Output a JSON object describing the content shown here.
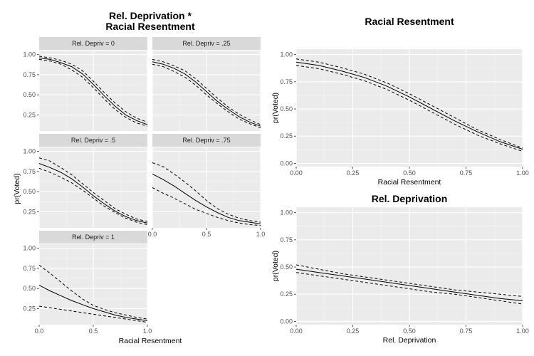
{
  "chart_data": [
    {
      "type": "line",
      "title": "Rel. Deprivation *\nRacial Resentment",
      "title_lines": [
        "Rel. Deprivation *",
        "Racial Resentment"
      ],
      "xlabel": "Racial Resentment",
      "ylabel": "pr(Voted)",
      "xlim": [
        0,
        1
      ],
      "ylim": [
        0.05,
        1.05
      ],
      "x_ticks": [
        0,
        0.5,
        1
      ],
      "x_tick_labels": [
        "0.0",
        "0.5",
        "1.0"
      ],
      "y_ticks": [
        0.25,
        0.5,
        0.75,
        1.0
      ],
      "y_tick_labels": [
        "0.25",
        "0.50",
        "0.75",
        "1.00"
      ],
      "x": [
        0,
        0.1,
        0.2,
        0.3,
        0.4,
        0.5,
        0.6,
        0.7,
        0.8,
        0.9,
        1.0
      ],
      "grid": true,
      "facets": [
        {
          "strip": "Rel. Depriv = 0",
          "estimate": [
            0.96,
            0.94,
            0.9,
            0.85,
            0.76,
            0.63,
            0.49,
            0.36,
            0.25,
            0.18,
            0.13
          ],
          "upper": [
            0.98,
            0.96,
            0.93,
            0.88,
            0.8,
            0.67,
            0.53,
            0.4,
            0.29,
            0.21,
            0.16
          ],
          "lower": [
            0.94,
            0.92,
            0.88,
            0.81,
            0.72,
            0.59,
            0.45,
            0.32,
            0.22,
            0.15,
            0.11
          ]
        },
        {
          "strip": "Rel. Depriv = .25",
          "estimate": [
            0.91,
            0.88,
            0.83,
            0.76,
            0.66,
            0.54,
            0.42,
            0.32,
            0.23,
            0.16,
            0.11
          ],
          "upper": [
            0.94,
            0.91,
            0.86,
            0.8,
            0.7,
            0.58,
            0.46,
            0.35,
            0.26,
            0.19,
            0.13
          ],
          "lower": [
            0.88,
            0.85,
            0.79,
            0.72,
            0.62,
            0.5,
            0.39,
            0.29,
            0.2,
            0.14,
            0.09
          ]
        },
        {
          "strip": "Rel. Depriv = .5",
          "estimate": [
            0.85,
            0.8,
            0.74,
            0.66,
            0.56,
            0.45,
            0.35,
            0.26,
            0.19,
            0.14,
            0.11
          ],
          "upper": [
            0.92,
            0.88,
            0.8,
            0.71,
            0.6,
            0.49,
            0.39,
            0.29,
            0.22,
            0.16,
            0.13
          ],
          "lower": [
            0.79,
            0.74,
            0.68,
            0.61,
            0.52,
            0.42,
            0.32,
            0.24,
            0.17,
            0.12,
            0.09
          ]
        },
        {
          "strip": "Rel. Depriv = .75",
          "estimate": [
            0.72,
            0.65,
            0.57,
            0.48,
            0.39,
            0.31,
            0.24,
            0.18,
            0.14,
            0.12,
            0.1
          ],
          "upper": [
            0.86,
            0.81,
            0.72,
            0.62,
            0.51,
            0.39,
            0.29,
            0.22,
            0.17,
            0.14,
            0.12
          ],
          "lower": [
            0.55,
            0.48,
            0.42,
            0.35,
            0.28,
            0.23,
            0.18,
            0.14,
            0.11,
            0.09,
            0.08
          ]
        },
        {
          "strip": "Rel. Depriv = 1",
          "estimate": [
            0.54,
            0.47,
            0.41,
            0.35,
            0.3,
            0.25,
            0.21,
            0.17,
            0.14,
            0.12,
            0.1
          ],
          "upper": [
            0.79,
            0.69,
            0.58,
            0.47,
            0.37,
            0.29,
            0.24,
            0.2,
            0.17,
            0.14,
            0.12
          ],
          "lower": [
            0.28,
            0.26,
            0.24,
            0.22,
            0.2,
            0.18,
            0.16,
            0.14,
            0.12,
            0.1,
            0.08
          ]
        }
      ]
    },
    {
      "type": "line",
      "title": "Racial Resentment",
      "xlabel": "Racial Resentment",
      "ylabel": "pr(Voted)",
      "xlim": [
        0,
        1
      ],
      "ylim": [
        -0.03,
        1.05
      ],
      "x_ticks": [
        0,
        0.25,
        0.5,
        0.75,
        1.0
      ],
      "x_tick_labels": [
        "0.00",
        "0.25",
        "0.50",
        "0.75",
        "1.00"
      ],
      "y_ticks": [
        0,
        0.25,
        0.5,
        0.75,
        1.0
      ],
      "y_tick_labels": [
        "0.00",
        "0.25",
        "0.50",
        "0.75",
        "1.00"
      ],
      "grid": true,
      "x": [
        0,
        0.1,
        0.2,
        0.3,
        0.4,
        0.5,
        0.6,
        0.7,
        0.8,
        0.9,
        1.0
      ],
      "estimate": [
        0.93,
        0.9,
        0.85,
        0.79,
        0.71,
        0.61,
        0.5,
        0.39,
        0.29,
        0.2,
        0.13
      ],
      "upper": [
        0.96,
        0.93,
        0.88,
        0.82,
        0.74,
        0.64,
        0.53,
        0.42,
        0.31,
        0.22,
        0.14
      ],
      "lower": [
        0.9,
        0.87,
        0.82,
        0.76,
        0.68,
        0.58,
        0.47,
        0.36,
        0.26,
        0.18,
        0.11
      ]
    },
    {
      "type": "line",
      "title": "Rel. Deprivation",
      "xlabel": "Rel. Deprivation",
      "ylabel": "pr(Voted)",
      "xlim": [
        0,
        1
      ],
      "ylim": [
        -0.03,
        1.05
      ],
      "x_ticks": [
        0,
        0.25,
        0.5,
        0.75,
        1.0
      ],
      "x_tick_labels": [
        "0.00",
        "0.25",
        "0.50",
        "0.75",
        "1.00"
      ],
      "y_ticks": [
        0,
        0.25,
        0.5,
        0.75,
        1.0
      ],
      "y_tick_labels": [
        "0.00",
        "0.25",
        "0.50",
        "0.75",
        "1.00"
      ],
      "grid": true,
      "x": [
        0,
        0.1,
        0.2,
        0.3,
        0.4,
        0.5,
        0.6,
        0.7,
        0.8,
        0.9,
        1.0
      ],
      "estimate": [
        0.48,
        0.45,
        0.42,
        0.39,
        0.36,
        0.33,
        0.3,
        0.27,
        0.24,
        0.21,
        0.19
      ],
      "upper": [
        0.52,
        0.48,
        0.44,
        0.41,
        0.38,
        0.35,
        0.32,
        0.29,
        0.27,
        0.25,
        0.23
      ],
      "lower": [
        0.45,
        0.42,
        0.39,
        0.36,
        0.33,
        0.3,
        0.27,
        0.25,
        0.22,
        0.19,
        0.16
      ]
    }
  ]
}
